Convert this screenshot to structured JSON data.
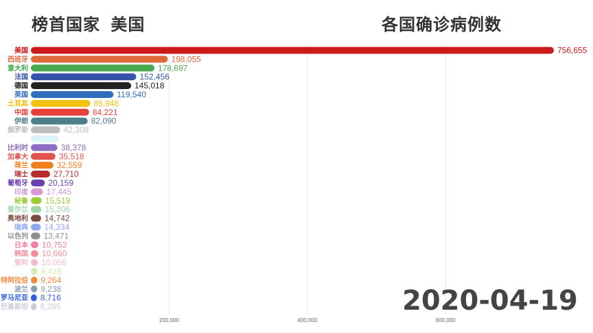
{
  "header": {
    "leader_label": "榜首国家",
    "leader_name": "美国",
    "title": "各国确诊病例数"
  },
  "date": "2020-04-19",
  "chart_data": {
    "type": "bar",
    "orientation": "horizontal",
    "title": "各国确诊病例数",
    "date": "2020-04-19",
    "xlim": [
      0,
      756655
    ],
    "xticks": [
      200000,
      400000,
      600000
    ],
    "xtick_labels": [
      "200,000",
      "400,000",
      "600,000"
    ],
    "grid": true,
    "categories": [
      "美国",
      "西班牙",
      "意大利",
      "法国",
      "德国",
      "英国",
      "土耳其",
      "中国",
      "伊朗",
      "俄罗斯",
      "",
      "比利时",
      "加拿大",
      "荷兰",
      "瑞士",
      "葡萄牙",
      "印度",
      "秘鲁",
      "爱尔兰",
      "奥地利",
      "瑞典",
      "以色列",
      "日本",
      "韩国",
      "智利",
      "",
      "特阿拉伯",
      "波兰",
      "罗马尼亚",
      "巴基斯坦"
    ],
    "values": [
      756655,
      198055,
      178697,
      152456,
      145018,
      119540,
      85948,
      84221,
      82090,
      42308,
      40000,
      38378,
      35518,
      32559,
      27710,
      20159,
      17445,
      15519,
      15206,
      14742,
      14334,
      13471,
      10752,
      10660,
      10056,
      9428,
      9264,
      9238,
      8716,
      8285
    ],
    "value_labels": [
      "756,655",
      "198,055",
      "178,697",
      "152,456",
      "145,018",
      "119,540",
      "85,948",
      "84,221",
      "82,090",
      "42,308",
      "",
      "38,378",
      "35,518",
      "32,559",
      "27,710",
      "20,159",
      "17,445",
      "15,519",
      "15,206",
      "14,742",
      "14,334",
      "13,471",
      "10,752",
      "10,660",
      "10,056",
      "9,428",
      "9,264",
      "9,238",
      "8,716",
      "8,285"
    ],
    "colors": [
      "#cc1a1a",
      "#e0693a",
      "#4aa84e",
      "#3553a8",
      "#222222",
      "#2f6fba",
      "#f4c20d",
      "#e8413c",
      "#4e7e8a",
      "#bdbdbd",
      "#d9f3f7",
      "#8e6cc4",
      "#e2554e",
      "#f07f1c",
      "#b52c2c",
      "#6a3fb0",
      "#d79ad6",
      "#9ecb3a",
      "#9fd8a6",
      "#7a4a3c",
      "#8fa9f0",
      "#8e8e8e",
      "#ef7fa0",
      "#ef8f9a",
      "#f4bccf",
      "#d8e9b6",
      "#f5893a",
      "#8a9db0",
      "#2f5fe0",
      "#c9cdd6"
    ]
  }
}
